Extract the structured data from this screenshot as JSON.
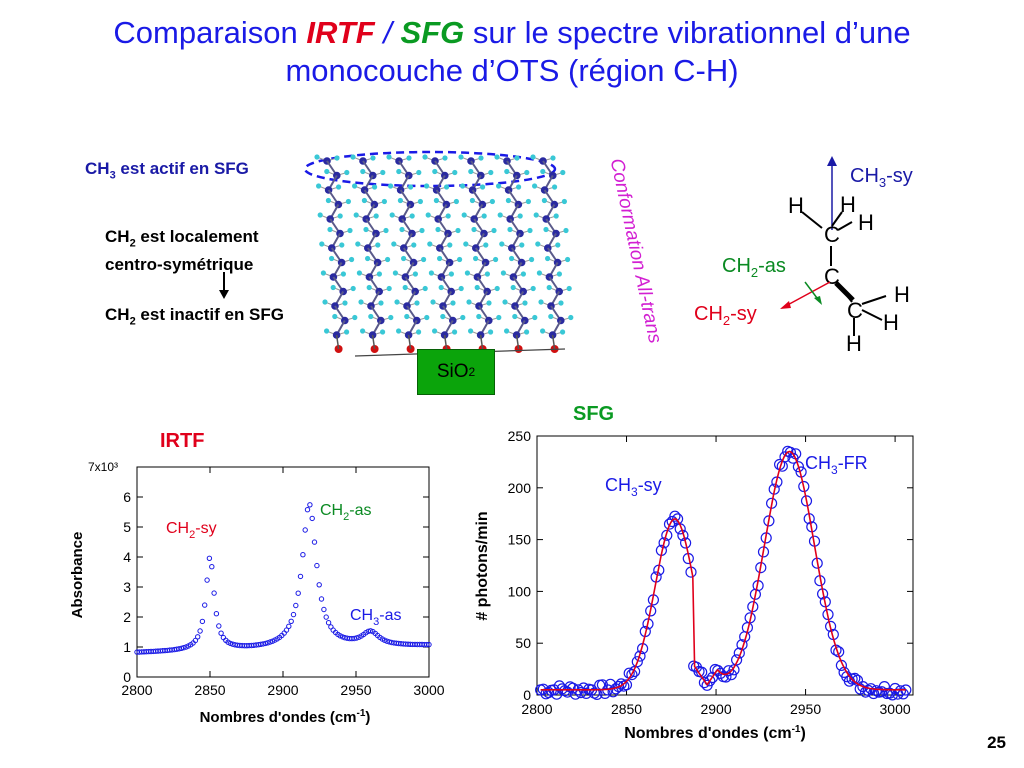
{
  "slide": {
    "title_part1": "Comparaison ",
    "title_irtf": "IRTF",
    "title_slash": " / ",
    "title_sfg": "SFG",
    "title_part2": " sur le spectre vibrationnel d’une",
    "title_line2": "monocouche d’OTS (région C-H)",
    "page_number": "25"
  },
  "notes": {
    "ch3_active": {
      "a": "CH",
      "sub": "3",
      "b": " est actif en SFG"
    },
    "ch2_local_1": {
      "a": "CH",
      "sub": "2",
      "b": " est localement"
    },
    "ch2_local_2": "centro-symétrique",
    "ch2_inactive": {
      "a": "CH",
      "sub": "2",
      "b": " est inactif en SFG"
    },
    "conformation": "Conformation All-trans",
    "substrate": {
      "a": "SiO",
      "sub": "2"
    }
  },
  "molecule": {
    "atoms": [
      "H",
      "H",
      "H",
      "C",
      "C",
      "C",
      "H",
      "H",
      "H"
    ],
    "ch3_sy": {
      "a": "CH",
      "sub": "3",
      "b": "-sy"
    },
    "ch2_as": {
      "a": "CH",
      "sub": "2",
      "b": "-as"
    },
    "ch2_sy": {
      "a": "CH",
      "sub": "2",
      "b": "-sy"
    },
    "colors": {
      "ch3_sy": "#1a1aa6",
      "ch2_as": "#0a8a22",
      "ch2_sy": "#e0001b"
    }
  },
  "chart_data": [
    {
      "type": "scatter",
      "title": "IRTF",
      "xlabel": "Nombres d'ondes (cm-1)",
      "ylabel": "Absorbance",
      "y_multiplier_label": "7x10³",
      "xlim": [
        2800,
        3000
      ],
      "ylim": [
        0,
        7
      ],
      "xticks": [
        2800,
        2850,
        2900,
        2950,
        3000
      ],
      "yticks": [
        0,
        1,
        2,
        3,
        4,
        5,
        6
      ],
      "annotations": [
        {
          "a": "CH",
          "sub": "2",
          "b": "-sy",
          "color": "#e0001b"
        },
        {
          "a": "CH",
          "sub": "2",
          "b": "-as",
          "color": "#0a8a22"
        },
        {
          "a": "CH",
          "sub": "3",
          "b": "-as",
          "color": "#1a1ae6"
        }
      ],
      "peaks": [
        {
          "label": "CH2-sy",
          "x": 2850,
          "y": 4.1
        },
        {
          "label": "CH2-as",
          "x": 2918,
          "y": 6.1
        },
        {
          "label": "CH3-as",
          "x": 2960,
          "y": 1.3
        }
      ],
      "baseline": 0.8,
      "marker_color": "#1a1ae6",
      "grid": false
    },
    {
      "type": "scatter",
      "title": "SFG",
      "xlabel": "Nombres d'ondes (cm-1)",
      "ylabel": "# photons/min",
      "xlim": [
        2800,
        3010
      ],
      "ylim": [
        0,
        250
      ],
      "xticks": [
        2800,
        2850,
        2900,
        2950,
        3000
      ],
      "yticks": [
        0,
        50,
        100,
        150,
        200,
        250
      ],
      "annotations": [
        {
          "a": "CH",
          "sub": "3",
          "b": "-sy",
          "color": "#1a1ae6"
        },
        {
          "a": "CH",
          "sub": "3",
          "b": "-FR",
          "color": "#1a1ae6"
        }
      ],
      "peaks": [
        {
          "label": "CH3-sy",
          "x": 2877,
          "y": 165
        },
        {
          "label": "CH3-FR",
          "x": 2941,
          "y": 230
        }
      ],
      "minimum": {
        "x": 2895,
        "y": 10
      },
      "baseline": 5,
      "marker_color": "#1a1ae6",
      "fit_color": "#e0001b",
      "grid": false
    }
  ]
}
